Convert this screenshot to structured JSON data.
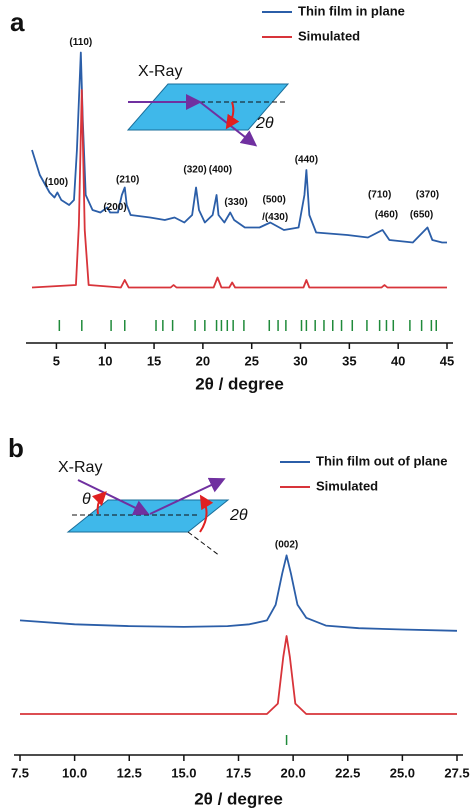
{
  "chart_data": [
    {
      "type": "line",
      "panel_label": "a",
      "x_label": "2θ / degree",
      "legend": "top-right",
      "xlim": [
        2.5,
        45
      ],
      "ylim": [
        0,
        100
      ],
      "xticks": [
        5,
        10,
        15,
        20,
        25,
        30,
        35,
        40,
        45
      ],
      "series": [
        {
          "name": "Thin film in plane",
          "color": "#2b5ea8",
          "x": [
            2.5,
            3.3,
            4.3,
            4.8,
            5.1,
            5.5,
            6.3,
            6.8,
            7.1,
            7.5,
            7.7,
            8.0,
            8.7,
            9.5,
            10.2,
            10.5,
            11.3,
            11.7,
            12.0,
            12.2,
            12.6,
            14.6,
            16.1,
            17.1,
            18.1,
            18.9,
            19.3,
            19.6,
            20.2,
            21.0,
            21.4,
            21.6,
            22.2,
            22.8,
            23.2,
            24.3,
            25.8,
            26.9,
            28.3,
            29.8,
            30.4,
            30.6,
            30.9,
            31.6,
            34.8,
            36.9,
            38.4,
            39.1,
            41.5,
            42.5,
            43.0,
            43.5,
            44.5,
            45.0
          ],
          "values": [
            60,
            50,
            43,
            41,
            43,
            40,
            38,
            40,
            60,
            99,
            72,
            42,
            36,
            35,
            37,
            35,
            35,
            42,
            45,
            38,
            34,
            33,
            32,
            33,
            31,
            34,
            45,
            36,
            31,
            34,
            42,
            34,
            31,
            35,
            32,
            29,
            29,
            31,
            28,
            29,
            42,
            52,
            34,
            27,
            26,
            25,
            28,
            24,
            23,
            27,
            29,
            24,
            23,
            23
          ]
        },
        {
          "name": "Simulated",
          "color": "#d8343a",
          "x": [
            2.5,
            7.0,
            7.3,
            7.6,
            7.9,
            8.3,
            11.6,
            12.0,
            12.4,
            16.7,
            17.0,
            17.3,
            21.1,
            21.5,
            21.9,
            22.7,
            23.0,
            23.3,
            30.3,
            30.6,
            30.9,
            38.3,
            38.6,
            38.9,
            45.0
          ],
          "values": [
            5,
            6,
            30,
            84,
            28,
            6,
            5,
            8,
            5,
            5,
            6,
            5,
            5,
            9,
            5,
            5,
            7,
            5,
            5,
            8,
            5,
            5,
            6,
            5,
            5
          ]
        }
      ],
      "reflections": [
        5.3,
        7.6,
        10.6,
        12.0,
        15.2,
        15.9,
        16.9,
        19.2,
        20.2,
        21.4,
        21.9,
        22.5,
        23.1,
        24.2,
        26.8,
        27.7,
        28.5,
        30.1,
        30.6,
        31.5,
        32.4,
        33.3,
        34.2,
        35.3,
        36.8,
        38.1,
        38.8,
        39.5,
        41.2,
        42.4,
        43.4,
        43.9
      ],
      "reflection_color": "#1f8a3a",
      "annotations": [
        {
          "text": "(110)",
          "x": 7.5,
          "y": 103
        },
        {
          "text": "(100)",
          "x": 5.0,
          "y": 47
        },
        {
          "text": "(200)",
          "x": 11.0,
          "y": 37
        },
        {
          "text": "(210)",
          "x": 12.3,
          "y": 48
        },
        {
          "text": "(320)",
          "x": 19.2,
          "y": 52
        },
        {
          "text": "(400)",
          "x": 21.8,
          "y": 52
        },
        {
          "text": "(330)",
          "x": 23.4,
          "y": 39
        },
        {
          "text": "(500)",
          "x": 27.3,
          "y": 40
        },
        {
          "text": "/(430)",
          "x": 27.4,
          "y": 33
        },
        {
          "text": "(440)",
          "x": 30.6,
          "y": 56
        },
        {
          "text": "(710)",
          "x": 38.1,
          "y": 42
        },
        {
          "text": "(460)",
          "x": 38.8,
          "y": 34
        },
        {
          "text": "(370)",
          "x": 43.0,
          "y": 42
        },
        {
          "text": "(650)",
          "x": 42.4,
          "y": 34
        }
      ],
      "inset": {
        "beam": "X-Ray",
        "angle": "2θ"
      }
    },
    {
      "type": "line",
      "panel_label": "b",
      "x_label": "2θ / degree",
      "legend": "top-right",
      "xlim": [
        7.5,
        27.5
      ],
      "ylim": [
        0,
        100
      ],
      "xticks": [
        7.5,
        {
          "value": 10,
          "label": "10.0"
        },
        12.5,
        {
          "value": 15,
          "label": "15.0"
        },
        17.5,
        {
          "value": 20,
          "label": "20.0"
        },
        22.5,
        {
          "value": 25,
          "label": "25.0"
        },
        27.5
      ],
      "series": [
        {
          "name": "Thin film out of plane",
          "color": "#2b5ea8",
          "x": [
            7.5,
            10,
            12.5,
            15,
            17,
            18,
            18.8,
            19.2,
            19.5,
            19.7,
            19.9,
            20.2,
            20.6,
            21.5,
            23,
            25,
            27.5
          ],
          "values": [
            46,
            44.5,
            43.8,
            43.5,
            43.8,
            44.5,
            46,
            52,
            64,
            71,
            64,
            52,
            47,
            44,
            43,
            42.5,
            42
          ]
        },
        {
          "name": "Simulated",
          "color": "#d8343a",
          "x": [
            7.5,
            18.8,
            19.3,
            19.55,
            19.7,
            19.85,
            20.1,
            20.6,
            27.5
          ],
          "values": [
            10,
            10,
            14,
            32,
            40,
            32,
            14,
            10,
            10
          ]
        }
      ],
      "reflections": [
        19.7
      ],
      "reflection_color": "#1f8a3a",
      "annotations": [
        {
          "text": "(002)",
          "x": 19.7,
          "y": 75
        }
      ],
      "inset": {
        "beam": "X-Ray",
        "incident": "θ",
        "angle": "2θ"
      }
    }
  ]
}
